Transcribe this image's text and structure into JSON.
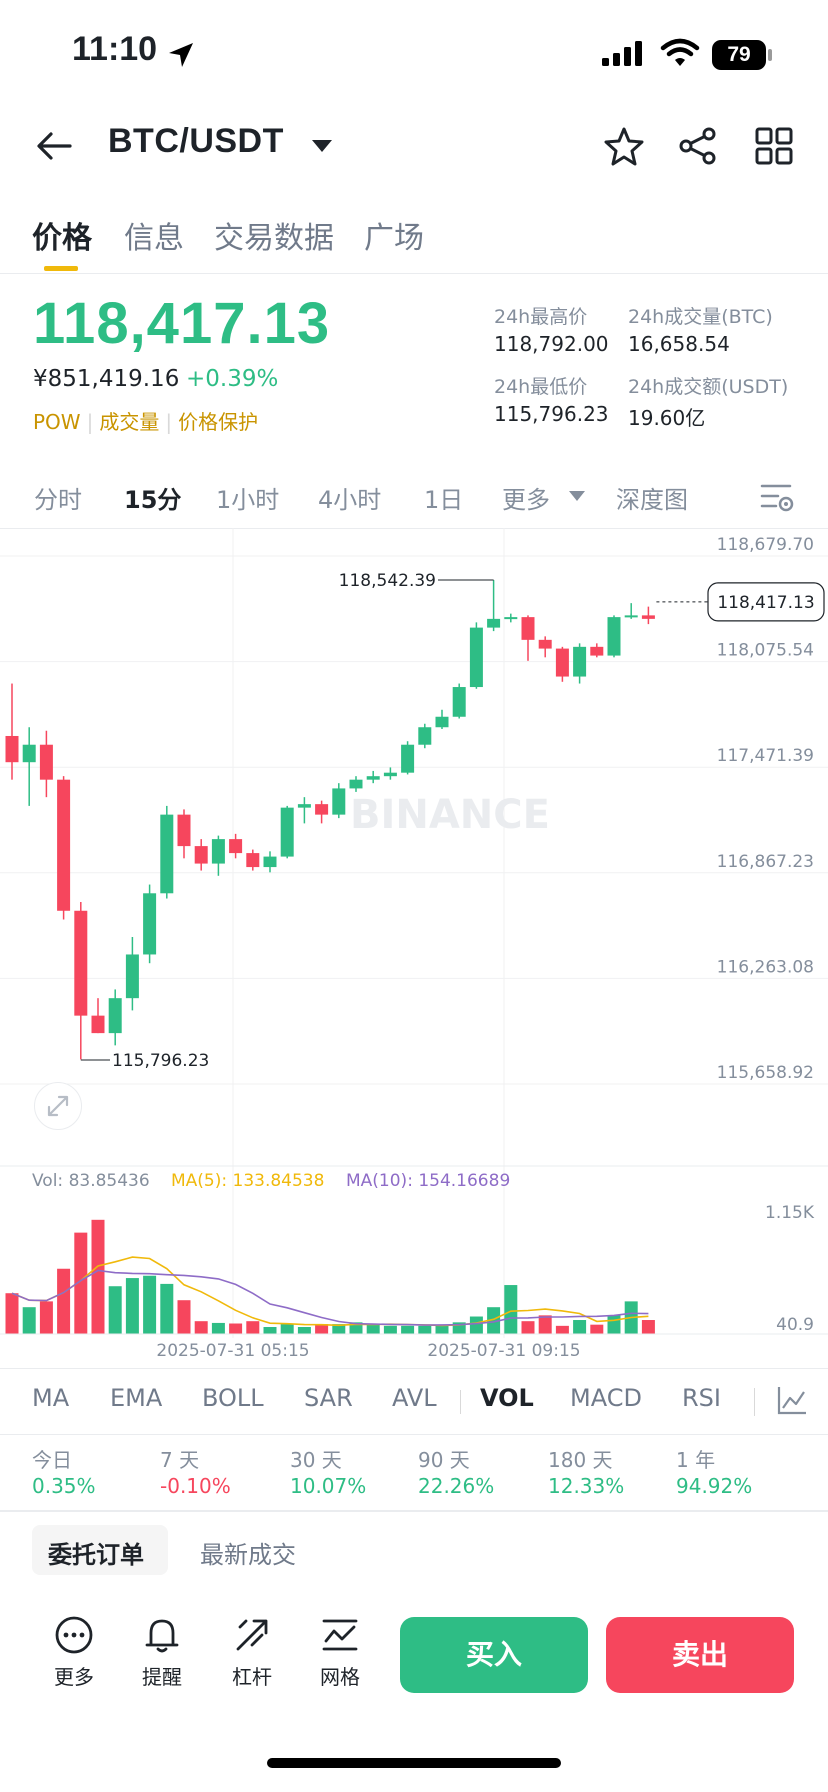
{
  "status": {
    "time": "11:10",
    "battery": "79"
  },
  "header": {
    "pair": "BTC/USDT"
  },
  "tabs": [
    "价格",
    "信息",
    "交易数据",
    "广场"
  ],
  "price": {
    "last": "118,417.13",
    "cny": "¥851,419.16",
    "change": "+0.39%",
    "tags": [
      "POW",
      "成交量",
      "价格保护"
    ]
  },
  "stats": {
    "high_label": "24h最高价",
    "high": "118,792.00",
    "vol_btc_label": "24h成交量(BTC)",
    "vol_btc": "16,658.54",
    "low_label": "24h最低价",
    "low": "115,796.23",
    "vol_usdt_label": "24h成交额(USDT)",
    "vol_usdt": "19.60亿"
  },
  "timeframes": [
    "分时",
    "15分",
    "1小时",
    "4小时",
    "1日",
    "更多",
    "深度图"
  ],
  "chart_data": {
    "type": "candlestick",
    "interval": "15m",
    "watermark": "BINANCE",
    "y_ticks": [
      "118,679.70",
      "118,075.54",
      "117,471.39",
      "116,867.23",
      "116,263.08",
      "115,658.92"
    ],
    "ylim": [
      115658.92,
      118679.7
    ],
    "current_price_label": "118,417.13",
    "current_price": 118417.13,
    "high_marker": "118,542.39",
    "high_marker_value": 118542.39,
    "low_marker": "115,796.23",
    "low_marker_value": 115796.23,
    "candles": [
      {
        "o": 117650,
        "h": 117950,
        "l": 117400,
        "c": 117500
      },
      {
        "o": 117500,
        "h": 117700,
        "l": 117250,
        "c": 117600
      },
      {
        "o": 117600,
        "h": 117680,
        "l": 117300,
        "c": 117400
      },
      {
        "o": 117400,
        "h": 117420,
        "l": 116600,
        "c": 116650
      },
      {
        "o": 116650,
        "h": 116700,
        "l": 115800,
        "c": 116050
      },
      {
        "o": 116050,
        "h": 116150,
        "l": 115950,
        "c": 115950
      },
      {
        "o": 115950,
        "h": 116200,
        "l": 115880,
        "c": 116150
      },
      {
        "o": 116150,
        "h": 116500,
        "l": 116080,
        "c": 116400
      },
      {
        "o": 116400,
        "h": 116800,
        "l": 116350,
        "c": 116750
      },
      {
        "o": 116750,
        "h": 117250,
        "l": 116720,
        "c": 117200
      },
      {
        "o": 117200,
        "h": 117230,
        "l": 116950,
        "c": 117020
      },
      {
        "o": 117020,
        "h": 117060,
        "l": 116880,
        "c": 116920
      },
      {
        "o": 116920,
        "h": 117080,
        "l": 116850,
        "c": 117060
      },
      {
        "o": 117060,
        "h": 117090,
        "l": 116950,
        "c": 116980
      },
      {
        "o": 116980,
        "h": 117000,
        "l": 116880,
        "c": 116900
      },
      {
        "o": 116900,
        "h": 116990,
        "l": 116870,
        "c": 116960
      },
      {
        "o": 116960,
        "h": 117250,
        "l": 116950,
        "c": 117240
      },
      {
        "o": 117240,
        "h": 117300,
        "l": 117150,
        "c": 117260
      },
      {
        "o": 117260,
        "h": 117280,
        "l": 117150,
        "c": 117200
      },
      {
        "o": 117200,
        "h": 117380,
        "l": 117180,
        "c": 117350
      },
      {
        "o": 117350,
        "h": 117420,
        "l": 117330,
        "c": 117400
      },
      {
        "o": 117400,
        "h": 117450,
        "l": 117380,
        "c": 117420
      },
      {
        "o": 117420,
        "h": 117470,
        "l": 117400,
        "c": 117440
      },
      {
        "o": 117440,
        "h": 117620,
        "l": 117430,
        "c": 117600
      },
      {
        "o": 117600,
        "h": 117720,
        "l": 117580,
        "c": 117700
      },
      {
        "o": 117700,
        "h": 117800,
        "l": 117690,
        "c": 117760
      },
      {
        "o": 117760,
        "h": 117950,
        "l": 117750,
        "c": 117930
      },
      {
        "o": 117930,
        "h": 118300,
        "l": 117920,
        "c": 118270
      },
      {
        "o": 118270,
        "h": 118542,
        "l": 118250,
        "c": 118320
      },
      {
        "o": 118320,
        "h": 118350,
        "l": 118300,
        "c": 118330
      },
      {
        "o": 118330,
        "h": 118340,
        "l": 118080,
        "c": 118200
      },
      {
        "o": 118200,
        "h": 118220,
        "l": 118100,
        "c": 118150
      },
      {
        "o": 118150,
        "h": 118160,
        "l": 117960,
        "c": 117990
      },
      {
        "o": 117990,
        "h": 118180,
        "l": 117950,
        "c": 118160
      },
      {
        "o": 118160,
        "h": 118180,
        "l": 118100,
        "c": 118110
      },
      {
        "o": 118110,
        "h": 118340,
        "l": 118100,
        "c": 118330
      },
      {
        "o": 118330,
        "h": 118410,
        "l": 118320,
        "c": 118340
      },
      {
        "o": 118340,
        "h": 118390,
        "l": 118290,
        "c": 118320
      }
    ],
    "volume_label": "Vol: 83.85436",
    "ma5_label": "MA(5): 133.84538",
    "ma10_label": "MA(10): 154.16689",
    "volume_ticks": [
      "1.15K",
      "40.9"
    ],
    "volume_ylim": [
      40.9,
      1150
    ],
    "volumes": [
      350,
      230,
      280,
      560,
      870,
      980,
      410,
      480,
      500,
      430,
      290,
      110,
      95,
      90,
      110,
      60,
      85,
      60,
      85,
      85,
      100,
      80,
      70,
      70,
      70,
      80,
      100,
      150,
      230,
      420,
      110,
      160,
      70,
      120,
      80,
      160,
      280,
      120
    ],
    "x_labels": [
      "2025-07-31 05:15",
      "2025-07-31 09:15"
    ],
    "colors": {
      "up": "#2ebd85",
      "down": "#f6465d",
      "ma5": "#f0b90b",
      "ma10": "#8e6cc7"
    }
  },
  "indicators": [
    "MA",
    "EMA",
    "BOLL",
    "SAR",
    "AVL",
    "VOL",
    "MACD",
    "RSI"
  ],
  "performance": [
    {
      "label": "今日",
      "value": "0.35%"
    },
    {
      "label": "7 天",
      "value": "-0.10%"
    },
    {
      "label": "30 天",
      "value": "10.07%"
    },
    {
      "label": "90 天",
      "value": "22.26%"
    },
    {
      "label": "180 天",
      "value": "12.33%"
    },
    {
      "label": "1 年",
      "value": "94.92%"
    }
  ],
  "order_tabs": [
    "委托订单",
    "最新成交"
  ],
  "bottom": {
    "more": "更多",
    "alert": "提醒",
    "leverage": "杠杆",
    "grid": "网格",
    "buy": "买入",
    "sell": "卖出"
  }
}
